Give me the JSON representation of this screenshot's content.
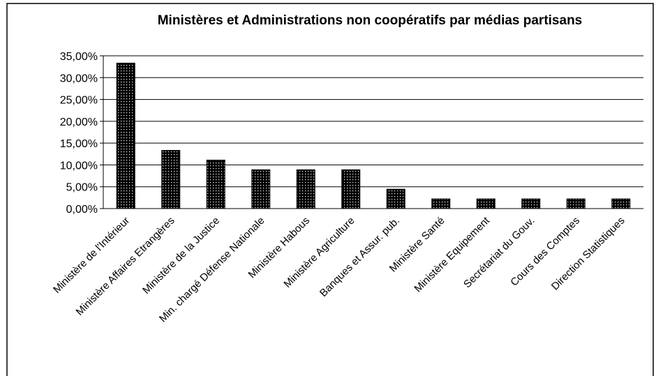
{
  "chart_data": {
    "type": "bar",
    "title": "Ministères et Administrations non coopératifs par médias partisans",
    "categories": [
      "Ministère de l'Intérieur",
      "Ministère Affaires Etrangères",
      "Ministère de la Justice",
      "Min. chargé  Défense Nationale",
      "Ministère Habous",
      "Ministère Agriculture",
      "Banques et Assur. pub.",
      "Ministère Santé",
      "Ministère Equipement",
      "Secrétariat du Gouv.",
      "Cours des Comptes",
      "Direction Statistiques"
    ],
    "values": [
      33.33,
      13.33,
      11.11,
      8.89,
      8.89,
      8.89,
      4.44,
      2.22,
      2.22,
      2.22,
      2.22,
      2.22
    ],
    "color": "#000000",
    "ylim": [
      0,
      35
    ],
    "yticks": [
      {
        "value": 0,
        "label": "0,00%"
      },
      {
        "value": 5,
        "label": "5,00%"
      },
      {
        "value": 10,
        "label": "10,00%"
      },
      {
        "value": 15,
        "label": "15,00%"
      },
      {
        "value": 20,
        "label": "20,00%"
      },
      {
        "value": 25,
        "label": "25,00%"
      },
      {
        "value": 30,
        "label": "30,00%"
      },
      {
        "value": 35,
        "label": "35,00%"
      }
    ],
    "grid": true
  }
}
